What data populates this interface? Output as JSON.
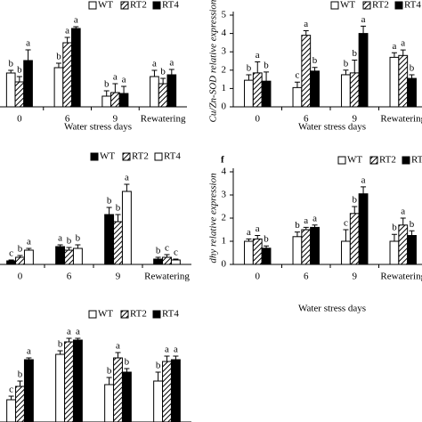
{
  "chart_data": [
    {
      "type": "bar",
      "x_label": "Water stress days",
      "categories": [
        "0",
        "6",
        "9",
        "Rewatering"
      ],
      "ylim": [
        0,
        5
      ],
      "series": [
        {
          "name": "WT",
          "color": "#ffffff",
          "values": [
            1.9,
            2.2,
            0.6,
            1.7
          ],
          "errors": [
            0.15,
            0.25,
            0.3,
            0.35
          ],
          "letters": [
            "b",
            "b",
            "b",
            "a"
          ]
        },
        {
          "name": "RT2",
          "color": "#ffffff",
          "pattern": "hatch",
          "values": [
            1.4,
            3.6,
            0.8,
            1.3
          ],
          "errors": [
            0.3,
            0.3,
            0.5,
            0.3
          ],
          "letters": [
            "b",
            "a",
            "a",
            "b"
          ]
        },
        {
          "name": "RT4",
          "color": "#000000",
          "values": [
            2.6,
            4.4,
            0.75,
            1.8
          ],
          "errors": [
            0.6,
            0.1,
            0.4,
            0.3
          ],
          "letters": [
            "a",
            "a",
            "a",
            "a"
          ]
        }
      ]
    },
    {
      "type": "bar",
      "x_label": "Water stress days",
      "y_label": "Cu/Zn-SOD relative expression",
      "categories": [
        "0",
        "6",
        "9",
        "Rewatering"
      ],
      "ylim": [
        0,
        5
      ],
      "yticks": [
        0,
        1,
        2,
        3,
        4,
        5
      ],
      "series": [
        {
          "name": "WT",
          "color": "#ffffff",
          "values": [
            1.45,
            1.05,
            1.75,
            2.7
          ],
          "errors": [
            0.3,
            0.3,
            0.25,
            0.25
          ],
          "letters": [
            "b",
            "c",
            "b",
            "a"
          ]
        },
        {
          "name": "RT2",
          "color": "#ffffff",
          "pattern": "hatch",
          "values": [
            1.85,
            3.9,
            1.85,
            2.8
          ],
          "errors": [
            0.6,
            0.25,
            0.7,
            0.3
          ],
          "letters": [
            "a",
            "a",
            "b",
            "a"
          ]
        },
        {
          "name": "RT4",
          "color": "#000000",
          "values": [
            1.4,
            1.95,
            4.0,
            1.55
          ],
          "errors": [
            0.5,
            0.2,
            0.4,
            0.2
          ],
          "letters": [
            "b",
            "b",
            "a",
            "b"
          ]
        }
      ]
    },
    {
      "type": "bar",
      "categories": [
        "0",
        "6",
        "9",
        "Rewatering"
      ],
      "ylim": [
        0,
        5
      ],
      "series": [
        {
          "name": "WT",
          "color": "#000000",
          "values": [
            0.2,
            1.0,
            2.8,
            0.3
          ],
          "errors": [
            0.05,
            0.1,
            0.4,
            0.1
          ],
          "letters": [
            "c",
            "a",
            "b",
            "b"
          ]
        },
        {
          "name": "RT2",
          "color": "#ffffff",
          "pattern": "hatch",
          "values": [
            0.4,
            0.8,
            2.4,
            0.4
          ],
          "errors": [
            0.1,
            0.15,
            0.4,
            0.15
          ],
          "letters": [
            "b",
            "b",
            "b",
            "c"
          ]
        },
        {
          "name": "RT4",
          "color": "#ffffff",
          "values": [
            0.8,
            0.9,
            4.1,
            0.25
          ],
          "errors": [
            0.1,
            0.2,
            0.4,
            0.05
          ],
          "letters": [
            "a",
            "b",
            "a",
            "c"
          ]
        }
      ]
    },
    {
      "type": "bar",
      "panel_label": "f",
      "x_label": "Water stress days",
      "y_label": "dhy relative expression",
      "categories": [
        "0",
        "6",
        "9",
        "Rewatering"
      ],
      "ylim": [
        0,
        4
      ],
      "yticks": [
        0,
        1,
        2,
        3,
        4
      ],
      "series": [
        {
          "name": "WT",
          "color": "#ffffff",
          "values": [
            1.0,
            1.2,
            1.0,
            1.0
          ],
          "errors": [
            0.1,
            0.2,
            0.5,
            0.3
          ],
          "letters": [
            "a",
            "b",
            "c",
            "b"
          ]
        },
        {
          "name": "RT2",
          "color": "#ffffff",
          "pattern": "hatch",
          "values": [
            1.1,
            1.5,
            2.2,
            1.7
          ],
          "errors": [
            0.15,
            0.1,
            0.3,
            0.3
          ],
          "letters": [
            "a",
            "a",
            "b",
            "a"
          ]
        },
        {
          "name": "RT4",
          "color": "#000000",
          "values": [
            0.7,
            1.6,
            3.05,
            1.25
          ],
          "errors": [
            0.1,
            0.1,
            0.3,
            0.2
          ],
          "letters": [
            "b",
            "a",
            "a",
            "b"
          ]
        }
      ]
    },
    {
      "type": "bar",
      "categories": [
        null,
        null,
        null,
        null
      ],
      "ylim": [
        0,
        5
      ],
      "series": [
        {
          "name": "WT",
          "color": "#ffffff",
          "values": [
            1.25,
            3.8,
            2.1,
            2.3
          ],
          "errors": [
            0.2,
            0.2,
            0.4,
            0.5
          ],
          "letters": [
            "c",
            "b",
            "b",
            "b"
          ]
        },
        {
          "name": "RT2",
          "color": "#ffffff",
          "pattern": "hatch",
          "values": [
            2.0,
            4.5,
            3.6,
            3.4
          ],
          "errors": [
            0.3,
            0.2,
            0.3,
            0.3
          ],
          "letters": [
            "b",
            "a",
            "a",
            "a"
          ]
        },
        {
          "name": "RT4",
          "color": "#000000",
          "values": [
            3.5,
            4.6,
            2.8,
            3.5
          ],
          "errors": [
            0.1,
            0.1,
            0.2,
            0.2
          ],
          "letters": [
            "a",
            "a",
            "b",
            "a"
          ]
        }
      ]
    }
  ]
}
